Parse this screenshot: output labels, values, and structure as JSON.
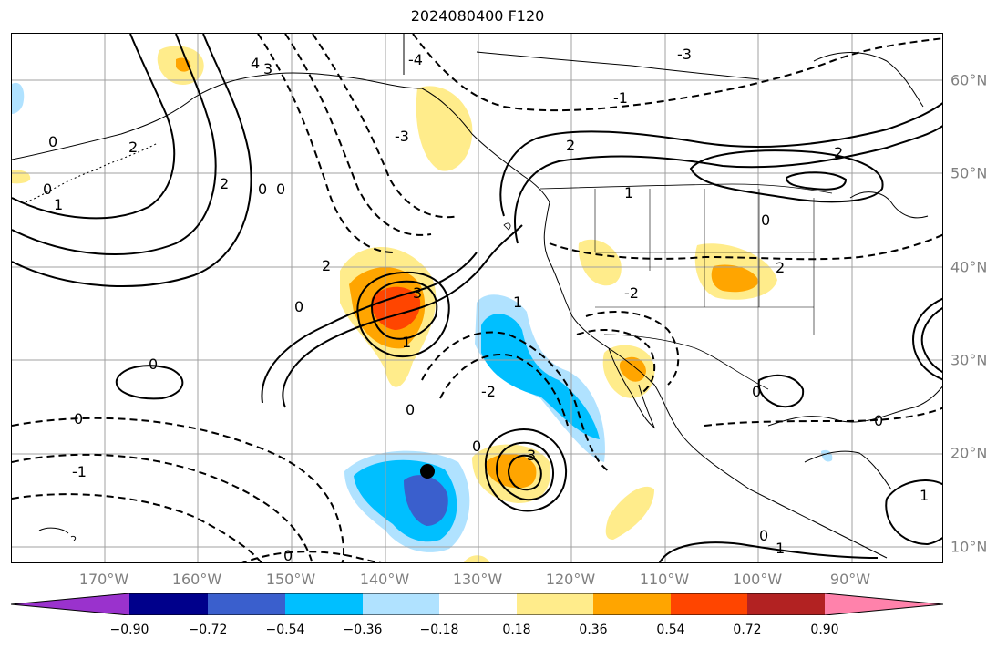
{
  "title": "2024080400 F120",
  "map": {
    "lon_labels": [
      "170°W",
      "160°W",
      "150°W",
      "140°W",
      "130°W",
      "120°W",
      "110°W",
      "100°W",
      "90°W"
    ],
    "lat_labels": [
      "60°N",
      "50°N",
      "40°N",
      "30°N",
      "20°N",
      "10°N"
    ],
    "contour_labels": [
      "0",
      "1",
      "2",
      "3",
      "4",
      "-1",
      "-2",
      "-3",
      "-4"
    ]
  },
  "colorbar": {
    "colors": [
      "#9a32cd",
      "#00008b",
      "#3a5fcd",
      "#00bfff",
      "#b0e2ff",
      "#ffffff",
      "#ffec8b",
      "#ffa500",
      "#ff4500",
      "#b22222",
      "#ff82ab"
    ],
    "tick_labels": [
      "−0.90",
      "−0.72",
      "−0.54",
      "−0.36",
      "−0.18",
      "0.18",
      "0.36",
      "0.54",
      "0.72",
      "0.90"
    ]
  },
  "colors": {
    "grid": "#a0a0a0",
    "axis_label": "#808080",
    "contour": "#000000"
  }
}
